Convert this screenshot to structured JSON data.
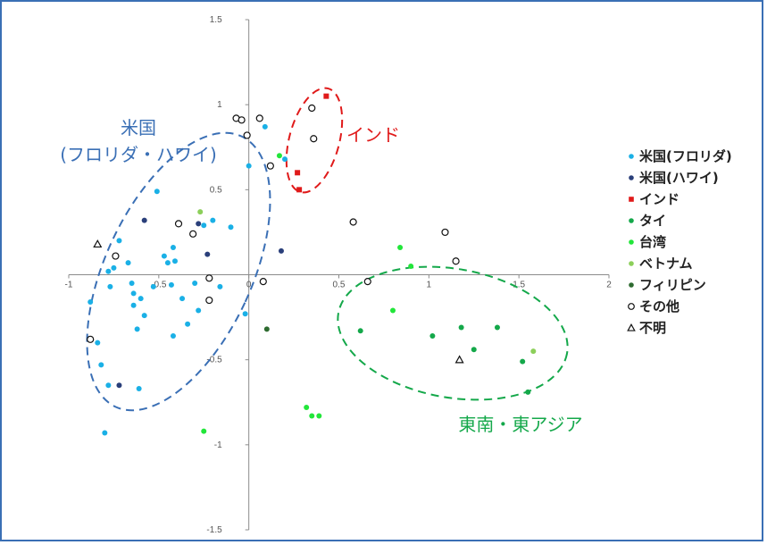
{
  "chart_data": {
    "type": "scatter",
    "xlim": [
      -1,
      2
    ],
    "ylim": [
      -1.5,
      1.5
    ],
    "x_ticks": [
      -1,
      -0.5,
      0,
      0.5,
      1,
      1.5,
      2
    ],
    "y_ticks": [
      -1.5,
      -1,
      -0.5,
      0,
      0.5,
      1,
      1.5
    ],
    "x_tick_labels": [
      "-1",
      "-0.5",
      "0",
      "0.5",
      "1",
      "1.5",
      "2"
    ],
    "y_tick_labels": [
      "-1.5",
      "-1",
      "-0.5",
      "0",
      "0.5",
      "1",
      "1.5"
    ],
    "grid": false,
    "legend_position": "right",
    "series": [
      {
        "name": "米国(フロリダ)",
        "color": "#1ab0e6",
        "marker": "circle",
        "points": [
          [
            -0.88,
            -0.16
          ],
          [
            -0.84,
            -0.4
          ],
          [
            -0.82,
            -0.53
          ],
          [
            -0.78,
            0.02
          ],
          [
            -0.75,
            0.04
          ],
          [
            -0.77,
            -0.07
          ],
          [
            -0.78,
            -0.65
          ],
          [
            -0.8,
            -0.93
          ],
          [
            -0.72,
            0.2
          ],
          [
            -0.67,
            0.07
          ],
          [
            -0.65,
            -0.05
          ],
          [
            -0.64,
            -0.11
          ],
          [
            -0.6,
            -0.14
          ],
          [
            -0.64,
            -0.18
          ],
          [
            -0.58,
            -0.24
          ],
          [
            -0.62,
            -0.32
          ],
          [
            -0.61,
            -0.67
          ],
          [
            -0.53,
            -0.07
          ],
          [
            -0.51,
            0.49
          ],
          [
            -0.47,
            0.11
          ],
          [
            -0.42,
            0.16
          ],
          [
            -0.41,
            0.08
          ],
          [
            -0.45,
            0.07
          ],
          [
            -0.43,
            -0.06
          ],
          [
            -0.42,
            -0.36
          ],
          [
            -0.37,
            -0.14
          ],
          [
            -0.34,
            -0.29
          ],
          [
            -0.3,
            -0.05
          ],
          [
            -0.28,
            -0.21
          ],
          [
            -0.25,
            0.29
          ],
          [
            -0.2,
            0.32
          ],
          [
            -0.16,
            -0.07
          ],
          [
            -0.1,
            0.28
          ],
          [
            -0.02,
            -0.23
          ],
          [
            0.09,
            0.87
          ],
          [
            0.2,
            0.68
          ],
          [
            0.0,
            0.64
          ]
        ]
      },
      {
        "name": "米国(ハワイ)",
        "color": "#2a3f7a",
        "marker": "circle",
        "points": [
          [
            -0.72,
            -0.65
          ],
          [
            -0.58,
            0.32
          ],
          [
            -0.28,
            0.3
          ],
          [
            -0.23,
            0.12
          ],
          [
            0.18,
            0.14
          ]
        ]
      },
      {
        "name": "インド",
        "color": "#e01a1a",
        "marker": "square",
        "points": [
          [
            0.43,
            1.05
          ],
          [
            0.27,
            0.6
          ],
          [
            0.28,
            0.5
          ]
        ]
      },
      {
        "name": "タイ",
        "color": "#14a84a",
        "marker": "circle",
        "points": [
          [
            0.62,
            -0.33
          ],
          [
            1.02,
            -0.36
          ],
          [
            1.18,
            -0.31
          ],
          [
            1.25,
            -0.44
          ],
          [
            1.38,
            -0.31
          ],
          [
            1.52,
            -0.51
          ],
          [
            1.55,
            -0.69
          ]
        ]
      },
      {
        "name": "台湾",
        "color": "#22e63a",
        "marker": "circle",
        "points": [
          [
            0.84,
            0.16
          ],
          [
            0.9,
            0.05
          ],
          [
            0.8,
            -0.21
          ],
          [
            0.32,
            -0.78
          ],
          [
            0.35,
            -0.83
          ],
          [
            0.39,
            -0.83
          ],
          [
            -0.25,
            -0.92
          ],
          [
            0.17,
            0.7
          ]
        ]
      },
      {
        "name": "ベトナム",
        "color": "#8ccf5a",
        "marker": "circle",
        "points": [
          [
            -0.27,
            0.37
          ],
          [
            1.58,
            -0.45
          ]
        ]
      },
      {
        "name": "フィリピン",
        "color": "#2e6b30",
        "marker": "circle",
        "points": [
          [
            0.1,
            -0.32
          ]
        ]
      },
      {
        "name": "その他",
        "color": "#111111",
        "marker": "open-circle",
        "points": [
          [
            -0.88,
            -0.38
          ],
          [
            -0.74,
            0.11
          ],
          [
            -0.39,
            0.3
          ],
          [
            -0.31,
            0.24
          ],
          [
            -0.22,
            -0.02
          ],
          [
            -0.22,
            -0.15
          ],
          [
            -0.07,
            0.92
          ],
          [
            -0.04,
            0.91
          ],
          [
            -0.01,
            0.82
          ],
          [
            0.06,
            0.92
          ],
          [
            0.08,
            -0.04
          ],
          [
            0.12,
            0.64
          ],
          [
            0.35,
            0.98
          ],
          [
            0.36,
            0.8
          ],
          [
            0.58,
            0.31
          ],
          [
            0.66,
            -0.04
          ],
          [
            1.09,
            0.25
          ],
          [
            1.15,
            0.08
          ]
        ]
      },
      {
        "name": "不明",
        "color": "#111111",
        "marker": "open-triangle",
        "points": [
          [
            -0.84,
            0.18
          ],
          [
            1.17,
            -0.5
          ]
        ]
      }
    ],
    "annotations": [
      {
        "text": "米国",
        "color": "#3a6fb5"
      },
      {
        "text": "(フロリダ・ハワイ)",
        "color": "#3a6fb5"
      },
      {
        "text": "インド",
        "color": "#e01a1a"
      },
      {
        "text": "東南・東アジア",
        "color": "#14a84a"
      }
    ]
  }
}
